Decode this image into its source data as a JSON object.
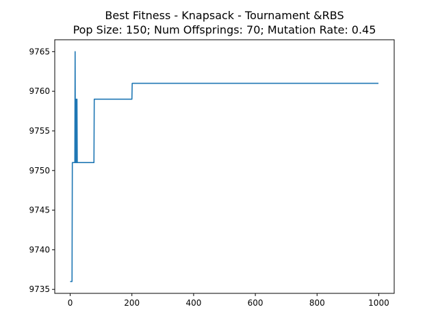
{
  "chart_data": {
    "type": "line",
    "title": "Best Fitness - Knapsack - Tournament &RBS",
    "subtitle": "Pop Size: 150; Num Offsprings: 70; Mutation Rate: 0.45",
    "xlabel": "",
    "ylabel": "",
    "xlim": [
      -50,
      1050
    ],
    "ylim": [
      9734.5,
      9766.5
    ],
    "xticks": [
      {
        "value": 0,
        "label": "0"
      },
      {
        "value": 200,
        "label": "200"
      },
      {
        "value": 400,
        "label": "400"
      },
      {
        "value": 600,
        "label": "600"
      },
      {
        "value": 800,
        "label": "800"
      },
      {
        "value": 1000,
        "label": "1000"
      }
    ],
    "yticks": [
      {
        "value": 9735,
        "label": "9735"
      },
      {
        "value": 9740,
        "label": "9740"
      },
      {
        "value": 9745,
        "label": "9745"
      },
      {
        "value": 9750,
        "label": "9750"
      },
      {
        "value": 9755,
        "label": "9755"
      },
      {
        "value": 9760,
        "label": "9760"
      },
      {
        "value": 9765,
        "label": "9765"
      }
    ],
    "grid": false,
    "legend": "none",
    "series": [
      {
        "color": "#1f77b4",
        "x": [
          0,
          6,
          7,
          15,
          16,
          17,
          18,
          19,
          20,
          21,
          22,
          23,
          24,
          25,
          77,
          78,
          200,
          201,
          999
        ],
        "y": [
          9736,
          9736,
          9751,
          9751,
          9765,
          9751,
          9751,
          9759,
          9751,
          9751,
          9759,
          9751,
          9751,
          9751,
          9751,
          9759,
          9759,
          9761,
          9761
        ]
      }
    ]
  }
}
